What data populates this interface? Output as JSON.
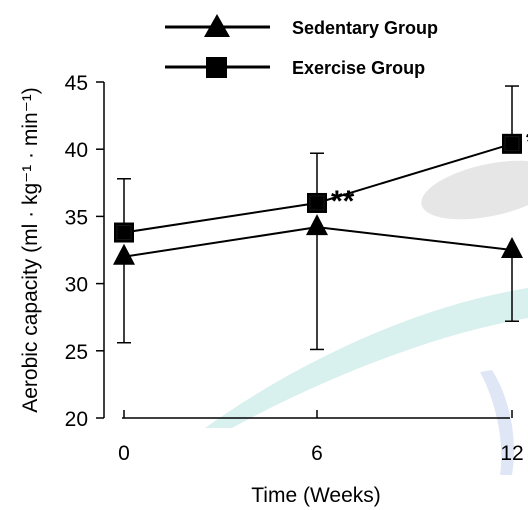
{
  "chart_data": {
    "type": "line",
    "x": [
      0,
      6,
      12
    ],
    "x_tick_labels": [
      "0",
      "6",
      "12"
    ],
    "y_ticks": [
      20,
      25,
      30,
      35,
      40,
      45
    ],
    "ylim": [
      20,
      45
    ],
    "xlabel": "Time (Weeks)",
    "ylabel": "Aerobic capacity (ml · kg⁻¹ · min⁻¹)",
    "legend_position": "top",
    "grid": false,
    "series": [
      {
        "name": "Sedentary Group",
        "marker": "triangle",
        "values": [
          32.0,
          34.2,
          32.5
        ],
        "error_low": [
          25.6,
          25.1,
          27.2
        ],
        "error_high": [
          null,
          null,
          null
        ],
        "error_direction": "down"
      },
      {
        "name": "Exercise Group",
        "marker": "square",
        "values": [
          33.8,
          36.0,
          40.4
        ],
        "error_low": [
          null,
          null,
          null
        ],
        "error_high": [
          37.8,
          39.7,
          44.7
        ],
        "error_direction": "up"
      }
    ],
    "annotations": [
      {
        "x": 6,
        "text": "**"
      },
      {
        "x": 12,
        "text": "*"
      }
    ]
  },
  "colors": {
    "ink": "#000000",
    "watermark_teal": "#d8f0ee",
    "watermark_grey": "#e6e6e6",
    "watermark_blue": "#dfe6f5"
  }
}
